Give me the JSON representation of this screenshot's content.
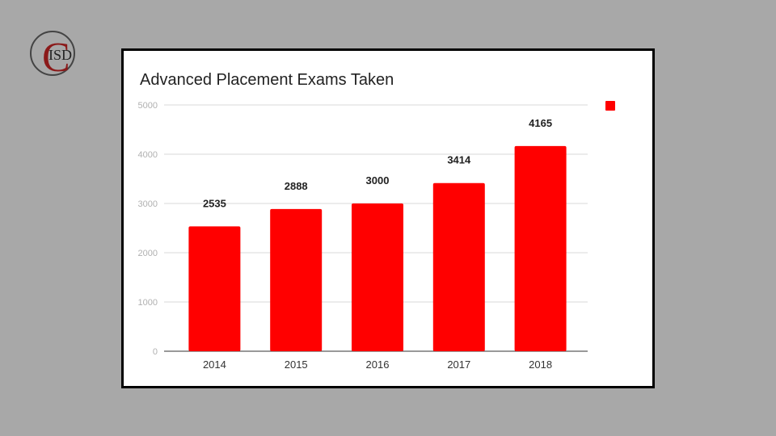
{
  "logo": {
    "icon": "cisd-logo",
    "text_big": "C",
    "text_small": "ISD",
    "ring_color": "#444444",
    "letter_color": "#8b1a1a"
  },
  "chart_data": {
    "type": "bar",
    "title": "Advanced Placement Exams Taken",
    "categories": [
      "2014",
      "2015",
      "2016",
      "2017",
      "2018"
    ],
    "values": [
      2535,
      2888,
      3000,
      3414,
      4165
    ],
    "value_labels": [
      "2535",
      "2888",
      "3000",
      "3414",
      "4165"
    ],
    "xlabel": "",
    "ylabel": "",
    "ylim": [
      0,
      5000
    ],
    "yticks": [
      0,
      1000,
      2000,
      3000,
      4000,
      5000
    ],
    "ytick_labels": [
      "0",
      "1000",
      "2000",
      "3000",
      "4000",
      "5000"
    ],
    "grid": true,
    "legend": {
      "position": "top-right",
      "entries": [
        {
          "label": "",
          "color": "#ff0000"
        }
      ]
    },
    "bar_color": "#ff0000"
  }
}
